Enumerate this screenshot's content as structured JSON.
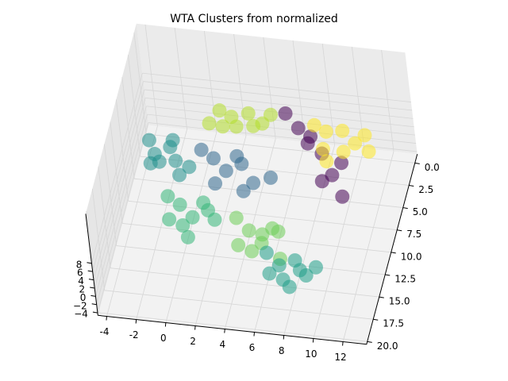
{
  "chart_data": {
    "type": "scatter3d",
    "title": "WTA Clusters from normalized",
    "xlim": [
      -4.6,
      13.6
    ],
    "ylim": [
      -1,
      20.3
    ],
    "zlim": [
      -4.6,
      20
    ],
    "xticks": [
      -4,
      -2,
      0,
      2,
      4,
      6,
      8,
      10,
      12
    ],
    "yticks": [
      {
        "value": 0,
        "label": "0.0"
      },
      2.5,
      {
        "value": 5,
        "label": "5.0"
      },
      7.5,
      {
        "value": 10,
        "label": "10.0"
      },
      12.5,
      {
        "value": 15,
        "label": "15.0"
      },
      17.5,
      {
        "value": 20,
        "label": "20.0"
      }
    ],
    "zticks": [
      {
        "value": -4,
        "label": "−4"
      },
      {
        "value": -2,
        "label": "−2"
      },
      0,
      2,
      4,
      6,
      8
    ],
    "grid": true,
    "series": [
      {
        "color": "#b5de2b",
        "x": [
          0.5,
          1.5,
          2.5,
          3.5,
          1,
          2,
          3,
          4,
          0
        ],
        "y": [
          -0.5,
          0.5,
          -0.3,
          0.2,
          1.2,
          1.5,
          0.8,
          -0.4,
          0.8
        ],
        "z": [
          2,
          3,
          2.5,
          1.5,
          2,
          3,
          2,
          2.5,
          1.5
        ]
      },
      {
        "color": "#440154",
        "x": [
          5,
          6,
          7,
          8,
          9,
          10,
          8.5,
          9.5,
          7
        ],
        "y": [
          -0.5,
          0.5,
          1.5,
          3,
          5,
          7,
          6,
          4,
          2.5
        ],
        "z": [
          3,
          2,
          2.5,
          2,
          1.5,
          1,
          2,
          2.5,
          3
        ]
      },
      {
        "color": "#fde725",
        "x": [
          7,
          8,
          9,
          10,
          11,
          8,
          9.5,
          10.5,
          8.5
        ],
        "y": [
          0,
          1,
          0.5,
          1.5,
          2,
          2.5,
          3,
          0.5,
          4
        ],
        "z": [
          2,
          3,
          2.5,
          2,
          1.5,
          2,
          3,
          2,
          2.5
        ]
      },
      {
        "color": "#31688e",
        "x": [
          0,
          1,
          2,
          3,
          4,
          1.5,
          2.5,
          3.5,
          5
        ],
        "y": [
          4,
          5,
          6,
          5.5,
          7,
          7.5,
          4.5,
          8,
          6
        ],
        "z": [
          2,
          2.5,
          2,
          3,
          2,
          2,
          2.5,
          2,
          1.5
        ]
      },
      {
        "color": "#21908d",
        "x": [
          -3.5,
          -3,
          -2.5,
          -2,
          -1.5,
          -1,
          -3,
          -2,
          -0.5
        ],
        "y": [
          4,
          5,
          6,
          4.5,
          5.5,
          7,
          6.5,
          3.5,
          6
        ],
        "z": [
          3,
          2,
          2.5,
          3,
          2,
          2,
          3,
          2.5,
          2
        ]
      },
      {
        "color": "#35b779",
        "x": [
          -1.5,
          -0.5,
          0.5,
          1.5,
          0,
          1,
          -1,
          2,
          0.5
        ],
        "y": [
          9,
          10,
          11,
          10.5,
          12,
          9.5,
          11.5,
          11,
          13
        ],
        "z": [
          1,
          1.5,
          1,
          2,
          1,
          1.5,
          1,
          1,
          0.5
        ]
      },
      {
        "color": "#6ece58",
        "x": [
          3.5,
          4.5,
          5.5,
          6.5,
          4,
          5,
          6,
          7,
          5.5
        ],
        "y": [
          11,
          12,
          13,
          12,
          13.5,
          14,
          11.5,
          14.5,
          12.5
        ],
        "z": [
          2,
          1.5,
          1,
          2,
          1,
          1,
          1.5,
          1,
          2
        ]
      },
      {
        "color": "#1f9e89",
        "x": [
          6,
          7,
          8,
          9,
          7.5,
          8.5,
          6.5,
          9.5,
          8
        ],
        "y": [
          14,
          15,
          14.5,
          16,
          16.5,
          15.5,
          16,
          15,
          17
        ],
        "z": [
          1,
          0.5,
          1,
          1,
          0.5,
          1,
          0.5,
          1,
          0
        ]
      }
    ]
  }
}
